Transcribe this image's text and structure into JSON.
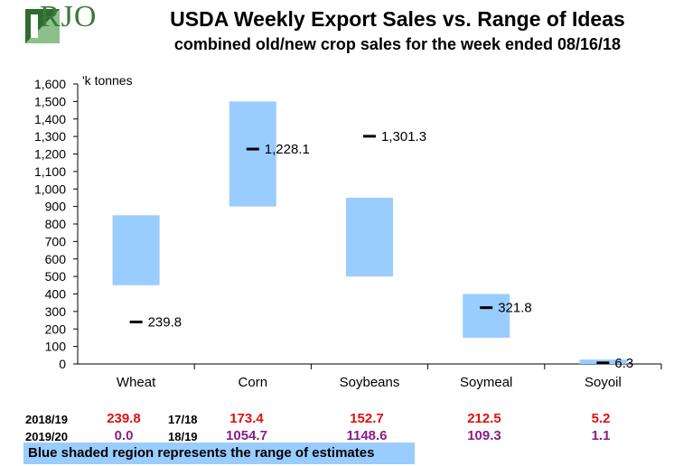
{
  "header": {
    "logo_text": "RJO",
    "title": "USDA Weekly Export Sales vs. Range of Ideas",
    "subtitle": "combined old/new crop sales for the week ended 08/16/18"
  },
  "chart_data": {
    "type": "range-bar",
    "title": "USDA Weekly Export Sales vs. Range of Ideas",
    "subtitle": "combined old/new crop sales for the week ended 08/16/18",
    "ylabel": "'k tonnes",
    "ylim": [
      0,
      1600
    ],
    "yticks": [
      0,
      100,
      200,
      300,
      400,
      500,
      600,
      700,
      800,
      900,
      1000,
      1100,
      1200,
      1300,
      1400,
      1500,
      1600
    ],
    "ytick_labels": [
      "0",
      "100",
      "200",
      "300",
      "400",
      "500",
      "600",
      "700",
      "800",
      "900",
      "1,000",
      "1,100",
      "1,200",
      "1,300",
      "1,400",
      "1,500",
      "1,600"
    ],
    "categories": [
      "Wheat",
      "Corn",
      "Soybeans",
      "Soymeal",
      "Soyoil"
    ],
    "range_low": [
      450,
      900,
      500,
      150,
      0
    ],
    "range_high": [
      850,
      1500,
      950,
      400,
      25
    ],
    "actual": [
      239.8,
      1228.1,
      1301.3,
      321.8,
      6.3
    ],
    "actual_labels": [
      "239.8",
      "1,228.1",
      "1,301.3",
      "321.8",
      "6.3"
    ],
    "range_color": "#99ccff",
    "marker_color": "#000000"
  },
  "table": {
    "row1": {
      "year_label": "2018/19",
      "values": [
        {
          "text": "239.8",
          "tag": ""
        },
        {
          "text": "173.4",
          "tag": "17/18"
        },
        {
          "text": "152.7",
          "tag": ""
        },
        {
          "text": "212.5",
          "tag": ""
        },
        {
          "text": "5.2",
          "tag": ""
        }
      ]
    },
    "row2": {
      "year_label": "2019/20",
      "values": [
        {
          "text": "0.0",
          "tag": ""
        },
        {
          "text": "1054.7",
          "tag": "18/19"
        },
        {
          "text": "1148.6",
          "tag": ""
        },
        {
          "text": "109.3",
          "tag": ""
        },
        {
          "text": "1.1",
          "tag": ""
        }
      ]
    },
    "row1_color": "#e01010",
    "row2_color": "#8a1d8a"
  },
  "note": "Blue shaded region represents the range of estimates"
}
